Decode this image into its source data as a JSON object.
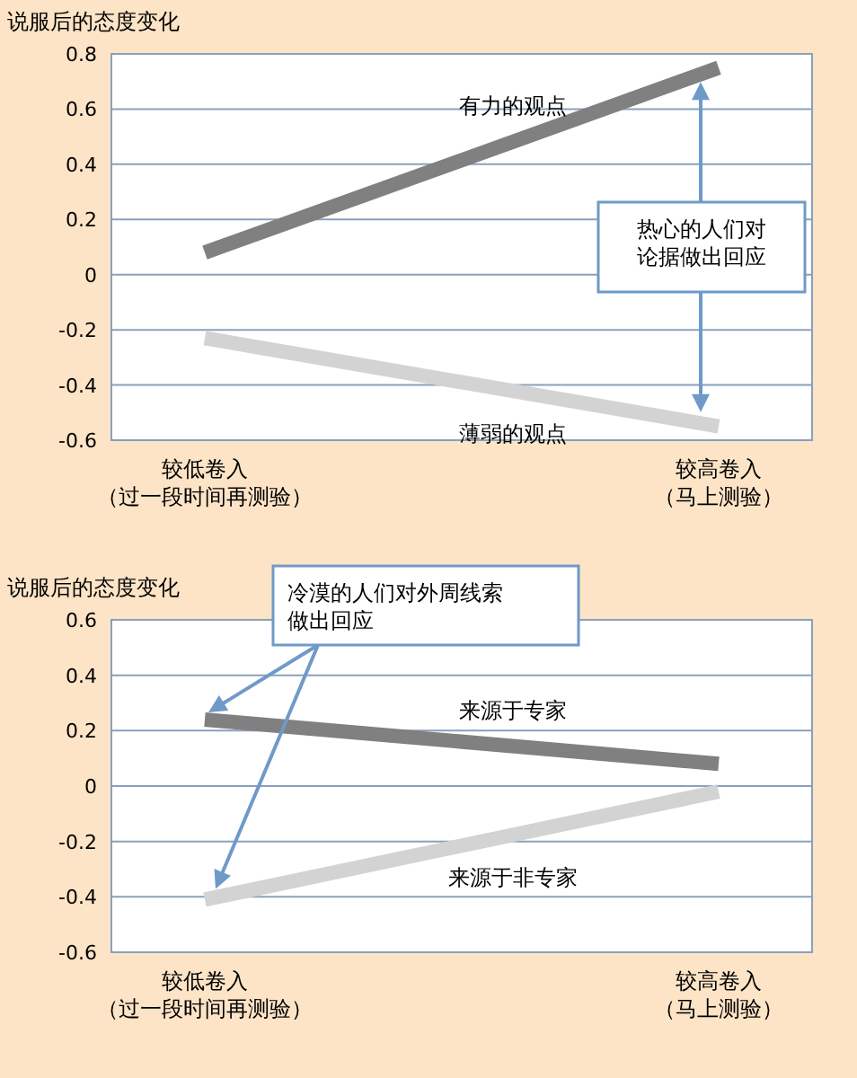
{
  "chart_data": [
    {
      "type": "line",
      "ylabel": "说服后的态度变化",
      "categories": [
        "较低卷入（过一段时间再测验）",
        "较高卷入（马上测验）"
      ],
      "ylim": [
        -0.6,
        0.8
      ],
      "yticks": [
        -0.6,
        -0.4,
        -0.2,
        0,
        0.2,
        0.4,
        0.6,
        0.8
      ],
      "grid": "y",
      "series": [
        {
          "name": "有力的观点",
          "color": "#808080",
          "values": [
            0.08,
            0.75
          ]
        },
        {
          "name": "薄弱的观点",
          "color": "#d3d3d3",
          "values": [
            -0.23,
            -0.55
          ]
        }
      ],
      "annotations": [
        "热心的人们对论据做出回应"
      ]
    },
    {
      "type": "line",
      "ylabel": "说服后的态度变化",
      "categories": [
        "较低卷入（过一段时间再测验）",
        "较高卷入（马上测验）"
      ],
      "ylim": [
        -0.6,
        0.6
      ],
      "yticks": [
        -0.6,
        -0.4,
        -0.2,
        0,
        0.2,
        0.4,
        0.6
      ],
      "grid": "y",
      "series": [
        {
          "name": "来源于专家",
          "color": "#808080",
          "values": [
            0.24,
            0.08
          ]
        },
        {
          "name": "来源于非专家",
          "color": "#d3d3d3",
          "values": [
            -0.41,
            -0.02
          ]
        }
      ],
      "annotations": [
        "冷漠的人们对外周线索做出回应"
      ]
    }
  ]
}
